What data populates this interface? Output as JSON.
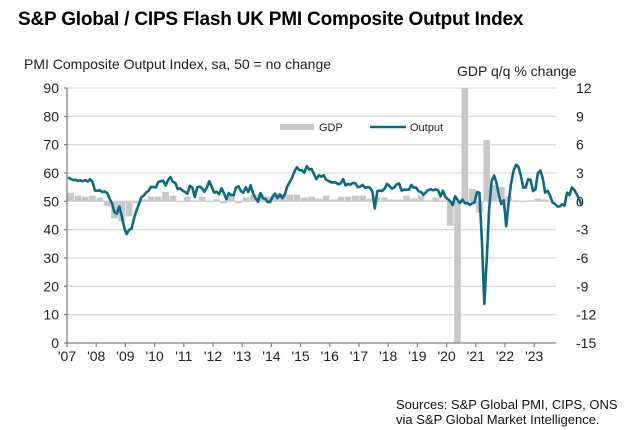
{
  "title": "S&P Global / CIPS Flash UK PMI Composite Output Index",
  "source": "Sources: S&P Global PMI, CIPS, ONS via S&P Global Market Intelligence.",
  "chart_data": {
    "type": "bar+line",
    "title": "S&P Global / CIPS Flash UK PMI Composite Output Index",
    "ylabel_left": "PMI Composite  Output  Index, sa, 50 = no change",
    "ylabel_right": "GDP q/q % change",
    "ylim_left": [
      0,
      90
    ],
    "yticks_left": [
      "0",
      "10",
      "20",
      "30",
      "40",
      "50",
      "60",
      "70",
      "80",
      "90"
    ],
    "ylim_right": [
      -15,
      12
    ],
    "yticks_right": [
      "-15",
      "-12",
      "-9",
      "-6",
      "-3",
      "0",
      "3",
      "6",
      "9",
      "12"
    ],
    "xticks": [
      "'07",
      "'08",
      "'09",
      "'10",
      "'11",
      "'12",
      "'13",
      "'14",
      "'15",
      "'16",
      "'17",
      "'18",
      "'19",
      "'20",
      "'21",
      "'22",
      "'23"
    ],
    "x_start_year": 2007,
    "grid": true,
    "legend_position": "top-center",
    "colors": {
      "gdp": "#c8c8c8",
      "output": "#0b6b86",
      "grid": "#d9d9d9",
      "axis": "#808080"
    },
    "series": [
      {
        "name": "GDP",
        "kind": "bar",
        "axis": "right",
        "frequency": "quarterly",
        "values": [
          0.9,
          0.6,
          0.5,
          0.6,
          0.4,
          -0.5,
          -1.8,
          -2.1,
          -1.6,
          -0.2,
          0.2,
          0.5,
          0.5,
          1.0,
          0.6,
          -0.1,
          0.5,
          0.1,
          0.5,
          -0.1,
          0.2,
          -0.2,
          0.8,
          -0.2,
          0.4,
          0.7,
          0.8,
          0.5,
          0.9,
          0.8,
          0.7,
          0.7,
          0.4,
          0.5,
          0.3,
          0.6,
          0.2,
          0.5,
          0.5,
          0.6,
          0.6,
          0.3,
          0.4,
          0.4,
          0.2,
          0.2,
          0.6,
          0.3,
          0.6,
          0.1,
          0.4,
          0.1,
          -2.6,
          -20.0,
          16.9,
          1.3,
          -1.2,
          6.5,
          1.7,
          1.5,
          0.5,
          0.1,
          -0.1,
          0.1,
          0.3,
          0.2
        ]
      },
      {
        "name": "Output",
        "kind": "line",
        "axis": "left",
        "frequency": "monthly",
        "values": [
          58.5,
          57.9,
          57.5,
          57.6,
          57.2,
          57.4,
          57.1,
          57.5,
          57.0,
          57.8,
          56.9,
          53.8,
          53.7,
          53.9,
          53.3,
          53.5,
          52.9,
          50.9,
          49.3,
          46.2,
          45.6,
          48.2,
          44.6,
          40.8,
          38.4,
          39.9,
          40.3,
          43.8,
          46.6,
          48.9,
          51.4,
          52.0,
          53.1,
          53.7,
          55.1,
          55.1,
          54.9,
          56.8,
          57.1,
          57.3,
          55.6,
          57.4,
          58.6,
          56.9,
          56.5,
          54.3,
          54.6,
          53.8,
          53.3,
          52.7,
          55.5,
          54.9,
          51.5,
          55.0,
          55.2,
          54.6,
          53.4,
          54.9,
          57.1,
          55.1,
          53.1,
          53.4,
          52.5,
          54.6,
          52.9,
          50.7,
          52.9,
          52.2,
          52.2,
          54.9,
          55.3,
          53.6,
          53.1,
          55.0,
          53.3,
          55.7,
          52.7,
          51.1,
          49.9,
          52.9,
          51.1,
          50.9,
          49.8,
          49.8,
          51.6,
          52.7,
          51.1,
          52.4,
          51.1,
          52.4,
          55.2,
          56.7,
          58.3,
          60.6,
          62.0,
          61.0,
          61.0,
          60.1,
          62.4,
          61.3,
          61.4,
          59.6,
          57.8,
          59.2,
          58.7,
          59.2,
          57.6,
          57.2,
          56.7,
          56.7,
          56.6,
          56.0,
          56.4,
          57.8,
          55.6,
          56.2,
          55.9,
          56.5,
          56.4,
          55.0,
          55.2,
          55.8,
          54.8,
          55.0,
          54.9,
          53.4,
          47.5,
          53.6,
          53.8,
          53.6,
          54.5,
          56.2,
          55.4,
          54.5,
          54.9,
          56.0,
          56.3,
          53.8,
          54.1,
          54.1,
          54.1,
          55.8,
          54.8,
          54.9,
          53.5,
          53.3,
          52.3,
          53.2,
          54.0,
          54.2,
          53.9,
          54.2,
          53.9,
          51.7,
          53.8,
          51.5,
          50.8,
          50.0,
          48.7,
          51.8,
          50.5,
          49.4,
          50.6,
          49.3,
          49.5,
          48.7,
          49.3,
          49.6,
          53.3,
          53.0,
          36.0,
          13.8,
          30.0,
          47.7,
          57.0,
          59.1,
          56.5,
          52.1,
          49.0,
          50.4,
          41.2,
          49.6,
          56.4,
          60.7,
          62.9,
          62.2,
          59.2,
          54.8,
          54.9,
          57.8,
          57.6,
          53.6,
          54.2,
          59.9,
          60.9,
          58.2,
          53.1,
          53.7,
          52.1,
          49.6,
          49.1,
          48.2,
          48.2,
          49.0,
          48.5,
          53.1,
          52.2,
          54.9,
          54.0,
          52.5,
          50.8,
          48.6
        ]
      }
    ]
  }
}
